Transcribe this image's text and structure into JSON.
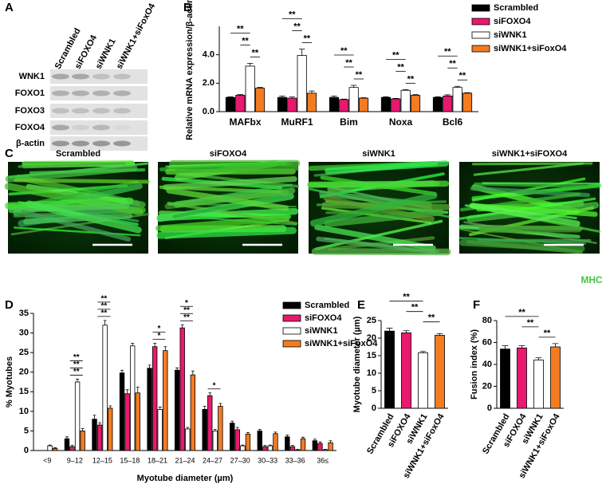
{
  "panel_labels": [
    "A",
    "B",
    "C",
    "D",
    "E",
    "F"
  ],
  "blot": {
    "lanes": [
      "Scrambled",
      "siFOXO4",
      "siWNK1",
      "siWNK1+siFoxO4"
    ],
    "proteins": [
      "WNK1",
      "FOXO1",
      "FOXO3",
      "FOXO4",
      "β-actin"
    ]
  },
  "images": {
    "titles": [
      "Scrambled",
      "siFOXO4",
      "siWNK1",
      "siWNK1+siFOXO4"
    ],
    "stain": "MHC"
  },
  "chart_data": [
    {
      "type": "bar",
      "ylabel": "Relative mRNA expression/β-actin",
      "categories": [
        "MAFbx",
        "MuRF1",
        "Bim",
        "Noxa",
        "Bcl6"
      ],
      "series": [
        {
          "name": "Scrambled",
          "color": "#000000",
          "values": [
            1.0,
            1.0,
            1.0,
            1.0,
            1.0
          ],
          "errors": [
            0.05,
            0.1,
            0.1,
            0.05,
            0.05
          ]
        },
        {
          "name": "siFOXO4",
          "color": "#e8196e",
          "values": [
            1.15,
            0.95,
            0.85,
            0.9,
            1.1
          ],
          "errors": [
            0.05,
            0.08,
            0.03,
            0.03,
            0.08
          ]
        },
        {
          "name": "siWNK1",
          "color": "#ffffff",
          "values": [
            3.2,
            3.95,
            1.7,
            1.5,
            1.7
          ],
          "errors": [
            0.2,
            0.45,
            0.15,
            0.05,
            0.08
          ]
        },
        {
          "name": "siWNK1+siFoxO4",
          "color": "#f47c20",
          "values": [
            1.65,
            1.3,
            0.95,
            1.15,
            1.3
          ],
          "errors": [
            0.05,
            0.15,
            0.03,
            0.05,
            0.03
          ]
        }
      ],
      "ylim": [
        0,
        6
      ],
      "yticks": [
        {
          "value": 0,
          "label": "0.0"
        },
        {
          "value": 2,
          "label": "2.0"
        },
        {
          "value": 4,
          "label": "4.0"
        }
      ],
      "annotations": [
        [
          "**",
          "**",
          "**"
        ],
        [
          "**",
          "**",
          "**"
        ],
        [
          "**",
          "**",
          "**"
        ],
        [
          "**",
          "**",
          "**"
        ],
        [
          "**",
          "**",
          "**"
        ]
      ]
    },
    {
      "type": "bar",
      "ylabel": "% Myotubes",
      "xlabel": "Myotube diameter (µm)",
      "categories": [
        "<9",
        "9–12",
        "12–15",
        "15–18",
        "18–21",
        "21–24",
        "24–27",
        "27–30",
        "30–33",
        "33–36",
        "36≤"
      ],
      "series": [
        {
          "name": "Scrambled",
          "color": "#000000",
          "values": [
            0,
            3,
            8,
            19.8,
            21,
            20.5,
            10.5,
            7,
            5,
            3.5,
            2.5
          ],
          "errors": [
            0,
            0.5,
            1,
            0.7,
            0.8,
            0.6,
            0.8,
            0.5,
            0.4,
            0.4,
            0.4
          ]
        },
        {
          "name": "siFOXO4",
          "color": "#e8196e",
          "values": [
            0,
            1,
            6.5,
            14.5,
            26.5,
            31.3,
            14,
            5.3,
            1,
            1,
            1.8
          ],
          "errors": [
            0,
            0.3,
            0.6,
            1,
            0.9,
            0.8,
            0.7,
            0.6,
            0.3,
            0.3,
            0.4
          ]
        },
        {
          "name": "siWNK1",
          "color": "#ffffff",
          "values": [
            1.2,
            17.5,
            32,
            26.7,
            10.5,
            5.5,
            5,
            1.2,
            1.2,
            0.2,
            0.2
          ],
          "errors": [
            0.2,
            0.7,
            1.2,
            0.7,
            0.6,
            0.4,
            0.4,
            0.2,
            0.2,
            0.1,
            0.1
          ]
        },
        {
          "name": "siWNK1+siFoxO4",
          "color": "#f47c20",
          "values": [
            0.5,
            5,
            10.8,
            14.7,
            25.5,
            19.3,
            11.3,
            4.2,
            4.3,
            3,
            2
          ],
          "errors": [
            0.2,
            0.6,
            0.6,
            1.5,
            1,
            1,
            0.7,
            0.4,
            0.4,
            0.4,
            0.5
          ]
        }
      ],
      "ylim": [
        0,
        35
      ],
      "yticks": [
        0,
        5,
        10,
        15,
        20,
        25,
        30,
        35
      ],
      "annotations": [
        null,
        [
          "**",
          "**",
          "**"
        ],
        [
          "**",
          "**",
          "**"
        ],
        null,
        [
          "*",
          "*"
        ],
        [
          "*",
          "**",
          "**"
        ],
        [
          "*"
        ],
        null,
        null,
        null,
        null
      ]
    },
    {
      "type": "bar",
      "ylabel": "Myotube diameter (µm)",
      "categories": [
        "Scrambled",
        "siFOXO4",
        "siWNK1",
        "siWNK1+siFoxO4"
      ],
      "values": [
        22,
        21.5,
        15.8,
        20.8
      ],
      "errors": [
        0.8,
        0.6,
        0.4,
        0.5
      ],
      "colors": [
        "#000000",
        "#e8196e",
        "#ffffff",
        "#f47c20"
      ],
      "ylim": [
        0,
        25
      ],
      "yticks": [
        0,
        5,
        10,
        15,
        20,
        25
      ],
      "annotations": [
        "**",
        "**",
        "**"
      ]
    },
    {
      "type": "bar",
      "ylabel": "Fusion index (%)",
      "categories": [
        "Scrambled",
        "siFOXO4",
        "siWNK1",
        "siWNK1+siFoxO4"
      ],
      "values": [
        54,
        55,
        44,
        56
      ],
      "errors": [
        3,
        2,
        2,
        3
      ],
      "colors": [
        "#000000",
        "#e8196e",
        "#ffffff",
        "#f47c20"
      ],
      "ylim": [
        0,
        80
      ],
      "yticks": [
        0,
        20,
        40,
        60,
        80
      ],
      "annotations": [
        "**",
        "**",
        "**"
      ]
    }
  ]
}
